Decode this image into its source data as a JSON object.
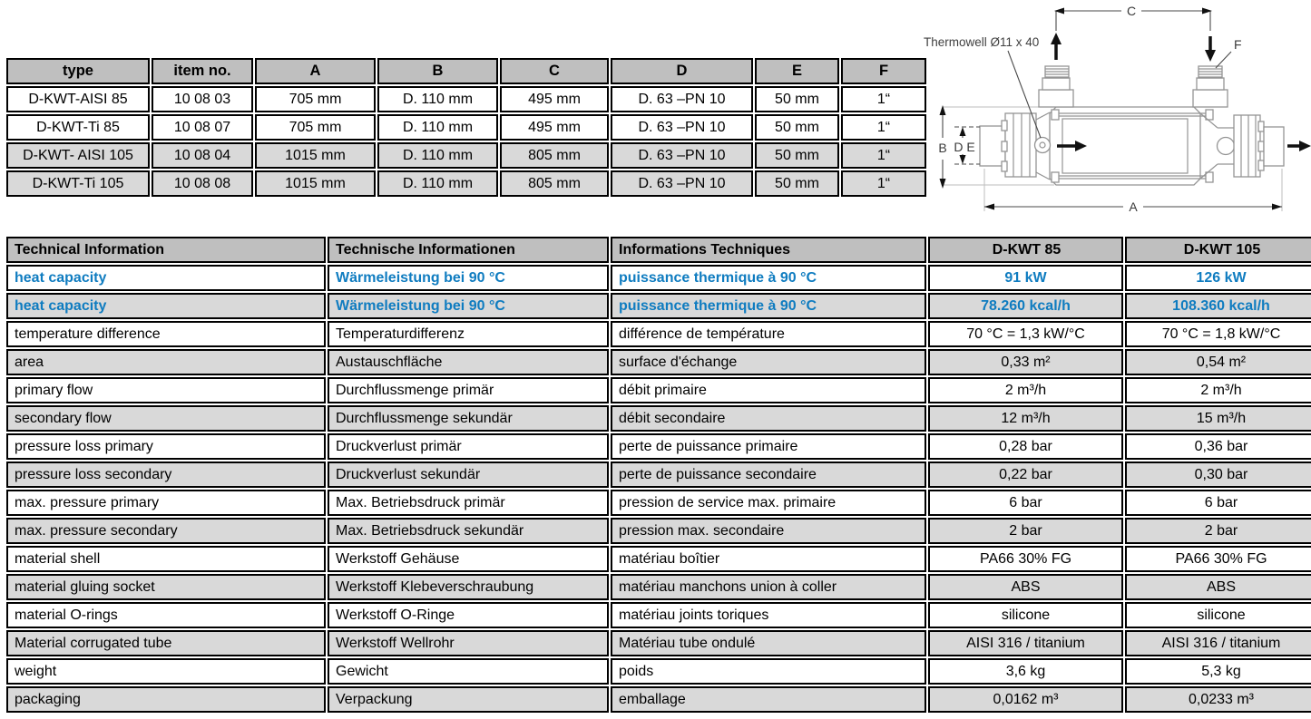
{
  "dimensions_table": {
    "headers": [
      "type",
      "item no.",
      "A",
      "B",
      "C",
      "D",
      "E",
      "F"
    ],
    "rows": [
      [
        "D-KWT-AISI 85",
        "10 08 03",
        "705 mm",
        "D. 110 mm",
        "495 mm",
        "D. 63 –PN 10",
        "50 mm",
        "1“"
      ],
      [
        "D-KWT-Ti 85",
        "10 08 07",
        "705 mm",
        "D. 110 mm",
        "495 mm",
        "D. 63 –PN 10",
        "50 mm",
        "1“"
      ],
      [
        "D-KWT- AISI 105",
        "10 08 04",
        "1015 mm",
        "D. 110 mm",
        "805 mm",
        "D. 63 –PN 10",
        "50 mm",
        "1“"
      ],
      [
        "D-KWT-Ti 105",
        "10 08 08",
        "1015 mm",
        "D. 110 mm",
        "805 mm",
        "D. 63 –PN 10",
        "50 mm",
        "1“"
      ]
    ]
  },
  "diagram": {
    "thermowell": "Thermowell Ø11 x 40",
    "labels": {
      "a": "A",
      "b": "B",
      "de": "D E",
      "c": "C",
      "f": "F"
    }
  },
  "tech_table": {
    "headers": [
      "Technical Information",
      "Technische Informationen",
      "Informations Techniques",
      "D-KWT 85",
      "D-KWT 105"
    ],
    "rows": [
      {
        "en": "heat capacity",
        "de": "Wärmeleistung bei 90 °C",
        "fr": "puissance thermique à 90 °C",
        "v85": "91 kW",
        "v105": "126 kW",
        "highlight": true
      },
      {
        "en": "heat capacity",
        "de": "Wärmeleistung bei 90 °C",
        "fr": "puissance thermique à 90 °C",
        "v85": "78.260 kcal/h",
        "v105": "108.360 kcal/h",
        "highlight": true
      },
      {
        "en": "temperature difference",
        "de": "Temperaturdifferenz",
        "fr": "différence de température",
        "v85": "70 °C = 1,3 kW/°C",
        "v105": "70 °C = 1,8 kW/°C",
        "highlight": false
      },
      {
        "en": "area",
        "de": "Austauschfläche",
        "fr": "surface d'échange",
        "v85": "0,33 m²",
        "v105": "0,54 m²",
        "highlight": false
      },
      {
        "en": "primary flow",
        "de": "Durchflussmenge primär",
        "fr": "débit primaire",
        "v85": "2 m³/h",
        "v105": "2 m³/h",
        "highlight": false
      },
      {
        "en": "secondary flow",
        "de": "Durchflussmenge sekundär",
        "fr": "débit secondaire",
        "v85": "12 m³/h",
        "v105": "15 m³/h",
        "highlight": false
      },
      {
        "en": "pressure loss primary",
        "de": "Druckverlust primär",
        "fr": "perte de puissance primaire",
        "v85": "0,28 bar",
        "v105": "0,36 bar",
        "highlight": false
      },
      {
        "en": "pressure loss secondary",
        "de": "Druckverlust sekundär",
        "fr": "perte de puissance secondaire",
        "v85": "0,22 bar",
        "v105": "0,30 bar",
        "highlight": false
      },
      {
        "en": "max. pressure primary",
        "de": "Max. Betriebsdruck primär",
        "fr": "pression de service max. primaire",
        "v85": "6 bar",
        "v105": "6 bar",
        "highlight": false
      },
      {
        "en": "max. pressure secondary",
        "de": "Max. Betriebsdruck sekundär",
        "fr": "pression max. secondaire",
        "v85": "2 bar",
        "v105": "2 bar",
        "highlight": false
      },
      {
        "en": "material shell",
        "de": "Werkstoff Gehäuse",
        "fr": "matériau boîtier",
        "v85": "PA66 30% FG",
        "v105": "PA66 30% FG",
        "highlight": false
      },
      {
        "en": "material gluing socket",
        "de": "Werkstoff Klebeverschraubung",
        "fr": "matériau manchons union à coller",
        "v85": "ABS",
        "v105": "ABS",
        "highlight": false
      },
      {
        "en": "material O-rings",
        "de": "Werkstoff O-Ringe",
        "fr": "matériau joints toriques",
        "v85": "silicone",
        "v105": "silicone",
        "highlight": false
      },
      {
        "en": "Material corrugated tube",
        "de": "Werkstoff Wellrohr",
        "fr": "Matériau tube ondulé",
        "v85": "AISI 316 / titanium",
        "v105": "AISI 316 / titanium",
        "highlight": false
      },
      {
        "en": "weight",
        "de": "Gewicht",
        "fr": "poids",
        "v85": "3,6 kg",
        "v105": "5,3 kg",
        "highlight": false
      },
      {
        "en": "packaging",
        "de": "Verpackung",
        "fr": "emballage",
        "v85": "0,0162 m³",
        "v105": "0,0233 m³",
        "highlight": false
      }
    ]
  },
  "colors": {
    "header_bg": "#bfbfbf",
    "row_alt_bg": "#d9d9d9",
    "highlight_blue": "#0f7cc0",
    "border": "#000000"
  }
}
